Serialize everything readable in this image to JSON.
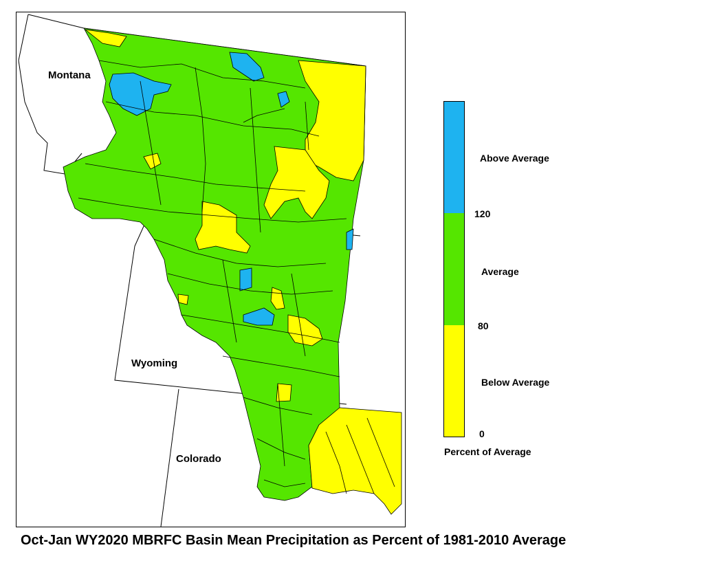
{
  "map": {
    "states": [
      "Montana",
      "Wyoming",
      "Colorado"
    ],
    "colors": {
      "above": "#1eb3f0",
      "average": "#55e600",
      "below": "#ffff00",
      "boundary": "#000000"
    }
  },
  "legend": {
    "labels": {
      "above": "Above Average",
      "average": "Average",
      "below": "Below Average"
    },
    "ticks": [
      "120",
      "80",
      "0"
    ],
    "title": "Percent of Average"
  },
  "caption": "Oct-Jan WY2020 MBRFC Basin Mean Precipitation as Percent of 1981-2010 Average"
}
